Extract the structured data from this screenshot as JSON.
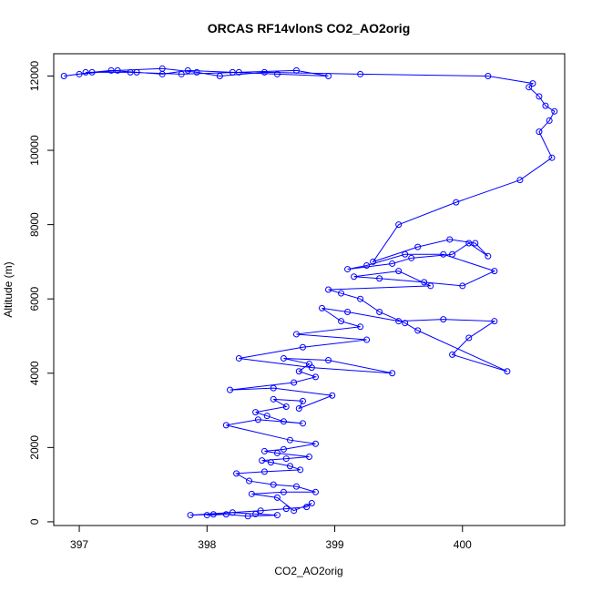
{
  "chart_data": {
    "type": "scatter",
    "title": "ORCAS RF14vlonS CO2_AO2orig",
    "xlabel": "CO2_AO2orig",
    "ylabel": "Altitude (m)",
    "xlim": [
      396.8,
      400.8
    ],
    "ylim": [
      -100,
      12600
    ],
    "xticks": [
      397,
      398,
      399,
      400
    ],
    "yticks": [
      0,
      2000,
      4000,
      6000,
      8000,
      10000,
      12000
    ],
    "grid": false,
    "legend": "none",
    "style": "line+points",
    "color": "#0000ff",
    "x": [
      398.0,
      398.15,
      398.32,
      398.55,
      398.38,
      398.2,
      398.05,
      397.87,
      398.42,
      398.62,
      398.78,
      398.82,
      398.68,
      398.55,
      398.35,
      398.6,
      398.85,
      398.7,
      398.52,
      398.33,
      398.23,
      398.45,
      398.73,
      398.65,
      398.5,
      398.43,
      398.62,
      398.8,
      398.55,
      398.45,
      398.6,
      398.85,
      398.65,
      398.15,
      398.4,
      398.75,
      398.6,
      398.47,
      398.38,
      398.62,
      398.52,
      398.75,
      398.72,
      398.98,
      398.52,
      398.18,
      398.68,
      398.85,
      398.72,
      398.8,
      398.6,
      398.95,
      399.45,
      398.82,
      398.25,
      398.75,
      399.25,
      398.7,
      399.2,
      399.05,
      398.9,
      399.1,
      399.5,
      399.85,
      400.25,
      400.05,
      399.92,
      400.35,
      399.65,
      399.55,
      399.35,
      399.2,
      399.05,
      398.95,
      399.75,
      399.5,
      399.15,
      399.35,
      399.7,
      400.0,
      400.25,
      399.85,
      399.55,
      399.25,
      399.1,
      399.45,
      399.6,
      399.92,
      400.05,
      400.2,
      400.1,
      399.9,
      399.65,
      399.3,
      399.5,
      399.95,
      400.45,
      400.7,
      400.6,
      400.68,
      400.72,
      400.65,
      400.6,
      400.52,
      400.55,
      400.2,
      399.2,
      398.45,
      398.1,
      397.92,
      397.65,
      397.3,
      397.0,
      396.88,
      397.1,
      397.25,
      397.45,
      397.65,
      397.85,
      398.2,
      398.55,
      398.95,
      398.7,
      398.25,
      397.8,
      397.4,
      397.05
    ],
    "y": [
      180,
      200,
      150,
      180,
      210,
      250,
      200,
      180,
      300,
      350,
      400,
      500,
      300,
      650,
      750,
      800,
      800,
      950,
      1000,
      1100,
      1300,
      1350,
      1400,
      1500,
      1600,
      1650,
      1700,
      1750,
      1850,
      1900,
      1950,
      2100,
      2200,
      2600,
      2750,
      2650,
      2700,
      2850,
      2950,
      3100,
      3300,
      3250,
      3050,
      3400,
      3600,
      3550,
      3750,
      3900,
      4050,
      4250,
      4400,
      4350,
      4000,
      4150,
      4400,
      4700,
      4900,
      5050,
      5250,
      5400,
      5750,
      5650,
      5400,
      5450,
      5400,
      4950,
      4500,
      4050,
      5150,
      5350,
      5650,
      6000,
      6150,
      6250,
      6350,
      6750,
      6600,
      6550,
      6450,
      6350,
      6750,
      7200,
      7200,
      6900,
      6800,
      6950,
      7100,
      7200,
      7500,
      7150,
      7500,
      7600,
      7400,
      7000,
      8000,
      8600,
      9200,
      9800,
      10500,
      10800,
      11050,
      11200,
      11450,
      11700,
      11800,
      12000,
      12050,
      12100,
      12000,
      12100,
      12200,
      12150,
      12050,
      12000,
      12100,
      12150,
      12100,
      12050,
      12150,
      12100,
      12050,
      12000,
      12150,
      12100,
      12050,
      12100,
      12100
    ]
  }
}
